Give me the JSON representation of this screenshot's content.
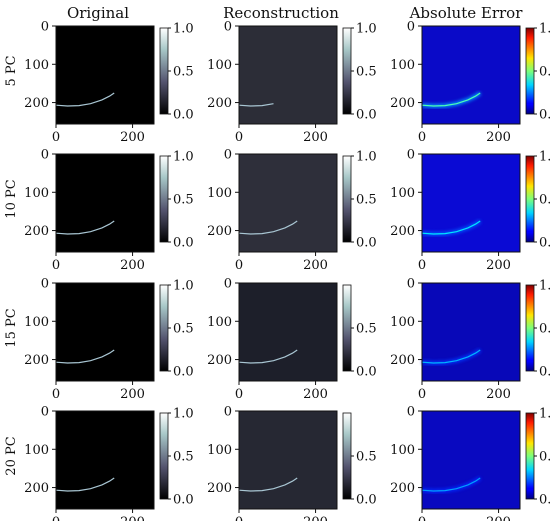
{
  "chart_data": {
    "type": "heatmap",
    "column_titles": [
      "Original",
      "Reconstruction",
      "Absolute Error"
    ],
    "row_labels": [
      "5 PC",
      "10 PC",
      "15 PC",
      "20 PC"
    ],
    "image_axis": {
      "xlim": [
        0,
        256
      ],
      "ylim": [
        256,
        0
      ],
      "x_ticks": [
        0,
        200
      ],
      "y_ticks": [
        0,
        100,
        200
      ],
      "x_tick_labels": [
        "0",
        "200"
      ],
      "y_tick_labels": [
        "0",
        "100",
        "200"
      ]
    },
    "colorbar": {
      "range": [
        0,
        1
      ],
      "ticks": [
        0,
        0.5,
        1
      ],
      "tick_labels": [
        "0.0",
        "0.5",
        "1.0"
      ],
      "original_colormap": "bone",
      "reconstruction_colormap": "bone",
      "error_colormap": "jet"
    },
    "reconstruction_colorbar_ticks": [
      {
        "ticks": [
          0,
          0.5,
          1
        ],
        "tick_labels": [
          "0.0",
          "0.5",
          "1.0"
        ]
      },
      {
        "ticks": [
          0,
          0.5,
          1
        ],
        "tick_labels": [
          "0.0",
          "0.5",
          "1.0"
        ]
      },
      {
        "ticks": [
          0,
          0.5
        ],
        "tick_labels": [
          "0.0",
          "0.5"
        ]
      },
      {
        "ticks": [
          0,
          0.5
        ],
        "tick_labels": [
          "0.0",
          "0.5"
        ]
      }
    ],
    "curve_points": [
      [
        0,
        207
      ],
      [
        30,
        209
      ],
      [
        60,
        208
      ],
      [
        90,
        203
      ],
      [
        120,
        193
      ],
      [
        140,
        183
      ],
      [
        152,
        175
      ]
    ],
    "panels": [
      {
        "row": "5 PC",
        "reconstruction_bg": "#2c2d37",
        "recon_curve_end_x": 95,
        "error_bg": "#0a0ac8",
        "error_peak": 0.45
      },
      {
        "row": "10 PC",
        "reconstruction_bg": "#2e2f3a",
        "recon_curve_end_x": 152,
        "error_bg": "#0a0ad4",
        "error_peak": 0.35
      },
      {
        "row": "15 PC",
        "reconstruction_bg": "#1d1f2a",
        "recon_curve_end_x": 152,
        "error_bg": "#0808b8",
        "error_peak": 0.3
      },
      {
        "row": "20 PC",
        "reconstruction_bg": "#262833",
        "recon_curve_end_x": 152,
        "error_bg": "#0909c0",
        "error_peak": 0.28
      }
    ],
    "original_bg": "#000000",
    "curve_color": "#a9c6d3"
  }
}
